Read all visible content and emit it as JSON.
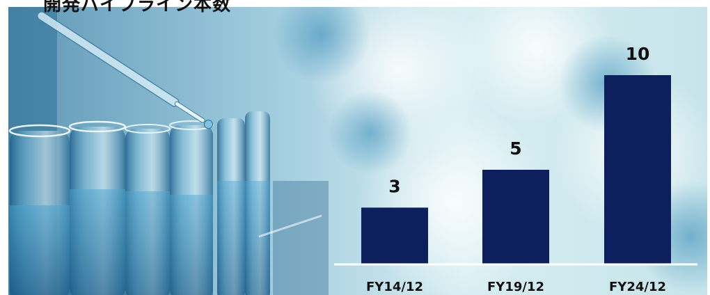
{
  "title": "開発パイプライン本数",
  "colors": {
    "bar": "#0d1f5c",
    "baseline": "#ffffff",
    "label": "#111111"
  },
  "background_image": "laboratory-test-tubes-pipette",
  "chart_data": {
    "type": "bar",
    "title": "開発パイプライン本数",
    "categories": [
      "FY14/12",
      "FY19/12",
      "FY24/12"
    ],
    "values": [
      3,
      5,
      10
    ],
    "xlabel": "",
    "ylabel": "",
    "ylim": [
      0,
      10
    ],
    "grid": false,
    "legend": "none",
    "data_labels": true
  }
}
